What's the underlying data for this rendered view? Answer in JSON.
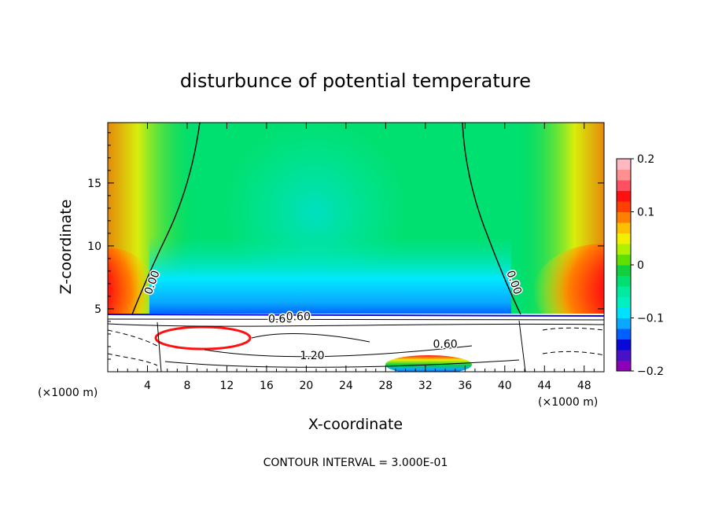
{
  "chart_data": {
    "type": "heatmap",
    "title": "disturbunce of potential temperature",
    "xlabel": "X-coordinate",
    "ylabel": "Z-coordinate",
    "x_unit": "(×1000 m)",
    "x_unit_right": "(×1000 m)",
    "xlim": [
      0,
      50
    ],
    "ylim": [
      0,
      19.8
    ],
    "x_ticks": [
      4,
      8,
      12,
      16,
      20,
      24,
      28,
      32,
      36,
      40,
      44,
      48
    ],
    "y_ticks": [
      5,
      10,
      15
    ],
    "footer": "CONTOUR INTERVAL = 3.000E-01",
    "colorbar": {
      "min": -0.2,
      "max": 0.2,
      "labels": [
        "0.2",
        "0.1",
        "0",
        "−0.1",
        "−0.2"
      ],
      "label_values": [
        0.2,
        0.1,
        0,
        -0.1,
        -0.2
      ],
      "colors": [
        "#8e00b8",
        "#4a10c8",
        "#0808d8",
        "#0060ff",
        "#0aa8ff",
        "#00e0ff",
        "#00f0c0",
        "#00eaa0",
        "#00e070",
        "#10d040",
        "#60e000",
        "#b0f000",
        "#f0f000",
        "#ffc000",
        "#ff8000",
        "#ff4000",
        "#ff1010",
        "#ff5060",
        "#ff9090",
        "#ffb8c0"
      ]
    },
    "contour_labels": [
      {
        "text": "0.00",
        "x": 4.8,
        "y": 7.0
      },
      {
        "text": "0.00",
        "x": 40.6,
        "y": 7.0
      },
      {
        "text": "0.60",
        "x": 17.4,
        "y": 3.9
      },
      {
        "text": "0.60",
        "x": 19.2,
        "y": 4.1
      },
      {
        "text": "1.20",
        "x": 20.6,
        "y": 1.0
      },
      {
        "text": "0.60",
        "x": 34.0,
        "y": 1.9
      }
    ]
  }
}
